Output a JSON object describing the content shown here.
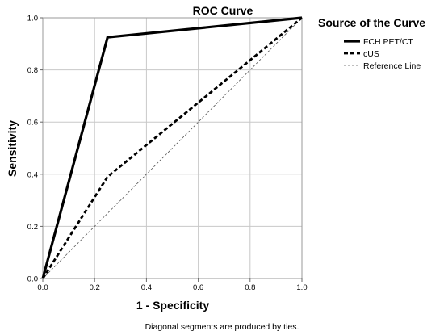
{
  "chart_data": {
    "type": "line",
    "title": "ROC Curve",
    "xlabel": "1 - Specificity",
    "ylabel": "Sensitivity",
    "xlim": [
      0,
      1
    ],
    "ylim": [
      0,
      1
    ],
    "x_ticks": [
      "0.0",
      "0.2",
      "0.4",
      "0.6",
      "0.8",
      "1.0"
    ],
    "y_ticks": [
      "0.0",
      "0.2",
      "0.4",
      "0.6",
      "0.8",
      "1.0"
    ],
    "grid": true,
    "legend": {
      "title": "Source of the Curve",
      "placement": "right"
    },
    "series": [
      {
        "name": "FCH PET/CT",
        "style": "solid-thick",
        "color": "#000000",
        "points": [
          [
            0,
            0
          ],
          [
            0.25,
            0.925
          ],
          [
            1,
            1
          ]
        ]
      },
      {
        "name": "cUS",
        "style": "dashed-thick",
        "color": "#000000",
        "points": [
          [
            0,
            0
          ],
          [
            0.25,
            0.39
          ],
          [
            1,
            1
          ]
        ]
      },
      {
        "name": "Reference Line",
        "style": "dashed-thin",
        "color": "#555555",
        "points": [
          [
            0,
            0
          ],
          [
            1,
            1
          ]
        ]
      }
    ],
    "footnote": "Diagonal segments are produced by ties."
  }
}
